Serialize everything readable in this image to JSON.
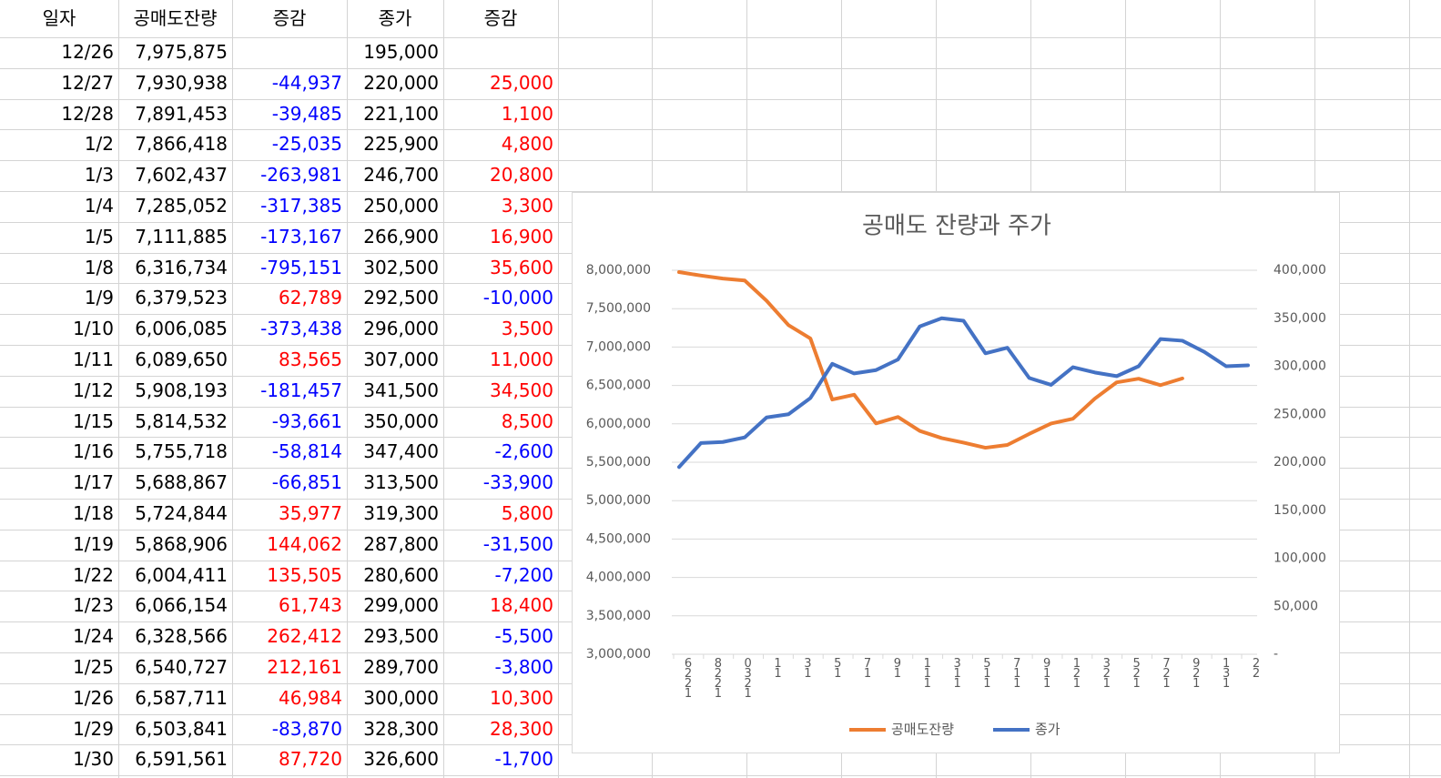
{
  "table": {
    "headers": [
      "일자",
      "공매도잔량",
      "증감",
      "종가",
      "증감"
    ],
    "rows": [
      [
        "12/26",
        "7,975,875",
        null,
        "195,000",
        null
      ],
      [
        "12/27",
        "7,930,938",
        "-44,937",
        "220,000",
        "25,000"
      ],
      [
        "12/28",
        "7,891,453",
        "-39,485",
        "221,100",
        "1,100"
      ],
      [
        "1/2",
        "7,866,418",
        "-25,035",
        "225,900",
        "4,800"
      ],
      [
        "1/3",
        "7,602,437",
        "-263,981",
        "246,700",
        "20,800"
      ],
      [
        "1/4",
        "7,285,052",
        "-317,385",
        "250,000",
        "3,300"
      ],
      [
        "1/5",
        "7,111,885",
        "-173,167",
        "266,900",
        "16,900"
      ],
      [
        "1/8",
        "6,316,734",
        "-795,151",
        "302,500",
        "35,600"
      ],
      [
        "1/9",
        "6,379,523",
        "62,789",
        "292,500",
        "-10,000"
      ],
      [
        "1/10",
        "6,006,085",
        "-373,438",
        "296,000",
        "3,500"
      ],
      [
        "1/11",
        "6,089,650",
        "83,565",
        "307,000",
        "11,000"
      ],
      [
        "1/12",
        "5,908,193",
        "-181,457",
        "341,500",
        "34,500"
      ],
      [
        "1/15",
        "5,814,532",
        "-93,661",
        "350,000",
        "8,500"
      ],
      [
        "1/16",
        "5,755,718",
        "-58,814",
        "347,400",
        "-2,600"
      ],
      [
        "1/17",
        "5,688,867",
        "-66,851",
        "313,500",
        "-33,900"
      ],
      [
        "1/18",
        "5,724,844",
        "35,977",
        "319,300",
        "5,800"
      ],
      [
        "1/19",
        "5,868,906",
        "144,062",
        "287,800",
        "-31,500"
      ],
      [
        "1/22",
        "6,004,411",
        "135,505",
        "280,600",
        "-7,200"
      ],
      [
        "1/23",
        "6,066,154",
        "61,743",
        "299,000",
        "18,400"
      ],
      [
        "1/24",
        "6,328,566",
        "262,412",
        "293,500",
        "-5,500"
      ],
      [
        "1/25",
        "6,540,727",
        "212,161",
        "289,700",
        "-3,800"
      ],
      [
        "1/26",
        "6,587,711",
        "46,984",
        "300,000",
        "10,300"
      ],
      [
        "1/29",
        "6,503,841",
        "-83,870",
        "328,300",
        "28,300"
      ],
      [
        "1/30",
        "6,591,561",
        "87,720",
        "326,600",
        "-1,700"
      ]
    ]
  },
  "chart_data": {
    "type": "line",
    "title": "공매도 잔량과 주가",
    "categories": [
      null,
      null,
      null,
      null,
      null,
      null,
      null,
      null,
      null,
      null,
      null,
      null,
      null,
      null,
      null,
      null,
      null,
      null,
      null,
      null,
      null,
      null,
      null,
      null,
      null,
      null,
      null
    ],
    "x_tick_labels": [
      "6221",
      "8221",
      "0321",
      "11",
      "31",
      "51",
      "71",
      "91",
      "111",
      "311",
      "511",
      "711",
      "911",
      "121",
      "321",
      "521",
      "721",
      "921",
      "131",
      "22"
    ],
    "series": [
      {
        "name": "공매도잔량",
        "color": "#ED7D31",
        "values": [
          7975875,
          7930938,
          7891453,
          7866418,
          7602437,
          7285052,
          7111885,
          6316734,
          6379523,
          6006085,
          6089650,
          5908193,
          5814532,
          5755718,
          5688867,
          5724844,
          5868906,
          6004411,
          6066154,
          6328566,
          6540727,
          6587711,
          6503841,
          6591561,
          null,
          null,
          null
        ]
      },
      {
        "name": "종가",
        "color": "#4472C4",
        "axis": "y2",
        "values": [
          195000,
          220000,
          221100,
          225900,
          246700,
          250000,
          266900,
          302500,
          292500,
          296000,
          307000,
          341500,
          350000,
          347400,
          313500,
          319300,
          287800,
          280600,
          299000,
          293500,
          289700,
          300000,
          328300,
          326600,
          315000,
          300000,
          301000
        ]
      }
    ],
    "ylim": [
      3000000,
      8000000
    ],
    "yticks": [
      {
        "value": 3000000,
        "label": "3,000,000"
      },
      {
        "value": 3500000,
        "label": "3,500,000"
      },
      {
        "value": 4000000,
        "label": "4,000,000"
      },
      {
        "value": 4500000,
        "label": "4,500,000"
      },
      {
        "value": 5000000,
        "label": "5,000,000"
      },
      {
        "value": 5500000,
        "label": "5,500,000"
      },
      {
        "value": 6000000,
        "label": "6,000,000"
      },
      {
        "value": 6500000,
        "label": "6,500,000"
      },
      {
        "value": 7000000,
        "label": "7,000,000"
      },
      {
        "value": 7500000,
        "label": "7,500,000"
      },
      {
        "value": 8000000,
        "label": "8,000,000"
      }
    ],
    "y2lim": [
      0,
      400000
    ],
    "y2ticks": [
      {
        "value": 0,
        "label": "-"
      },
      {
        "value": 50000,
        "label": "50,000"
      },
      {
        "value": 100000,
        "label": "100,000"
      },
      {
        "value": 150000,
        "label": "150,000"
      },
      {
        "value": 200000,
        "label": "200,000"
      },
      {
        "value": 250000,
        "label": "250,000"
      },
      {
        "value": 300000,
        "label": "300,000"
      },
      {
        "value": 350000,
        "label": "350,000"
      },
      {
        "value": 400000,
        "label": "400,000"
      }
    ],
    "grid": true,
    "legend": "bottom"
  }
}
